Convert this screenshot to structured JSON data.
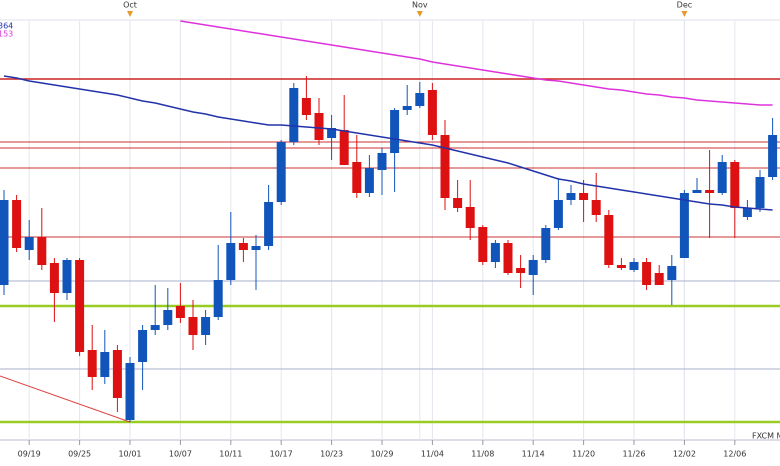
{
  "chart_data": {
    "type": "candlestick",
    "categories": [
      null,
      null,
      "09/19",
      null,
      null,
      null,
      "09/25",
      null,
      null,
      null,
      "10/01",
      null,
      null,
      null,
      "10/07",
      null,
      null,
      null,
      "10/11",
      null,
      null,
      null,
      "10/17",
      null,
      null,
      null,
      "10/23",
      null,
      null,
      null,
      "10/29",
      null,
      null,
      null,
      "11/04",
      null,
      null,
      null,
      "11/08",
      null,
      null,
      null,
      "11/14",
      null,
      null,
      null,
      "11/20",
      null,
      null,
      null,
      "11/26",
      null,
      null,
      null,
      "12/02",
      null,
      null,
      null,
      "12/06",
      null,
      null,
      null
    ],
    "month_categories": [
      null,
      null,
      null,
      null,
      null,
      null,
      null,
      null,
      null,
      null,
      "Oct",
      null,
      null,
      null,
      null,
      null,
      null,
      null,
      null,
      null,
      null,
      null,
      null,
      null,
      null,
      null,
      null,
      null,
      null,
      null,
      null,
      null,
      null,
      "Nov",
      null,
      null,
      null,
      null,
      null,
      null,
      null,
      null,
      null,
      null,
      null,
      null,
      null,
      null,
      null,
      null,
      null,
      null,
      null,
      null,
      "Dec",
      null,
      null,
      null,
      null,
      null,
      null,
      null
    ],
    "open": [
      155,
      240,
      190,
      203,
      177,
      147,
      180,
      90,
      63,
      90,
      20,
      78,
      110,
      115,
      134,
      123,
      105,
      123,
      160,
      197,
      190,
      194,
      238,
      298,
      342,
      327,
      302,
      310,
      278,
      247,
      270,
      287,
      330,
      334,
      350,
      305,
      242,
      233,
      213,
      178,
      197,
      172,
      165,
      180,
      212,
      240,
      247,
      240,
      225,
      175,
      170,
      178,
      167,
      160,
      182,
      247,
      250,
      247,
      278,
      223,
      232,
      263
    ],
    "high": [
      250,
      245,
      220,
      232,
      182,
      182,
      182,
      115,
      110,
      95,
      83,
      115,
      155,
      152,
      157,
      140,
      130,
      195,
      228,
      202,
      205,
      255,
      300,
      357,
      364,
      342,
      325,
      345,
      305,
      285,
      292,
      332,
      355,
      358,
      357,
      320,
      260,
      260,
      215,
      200,
      200,
      185,
      185,
      215,
      262,
      255,
      260,
      267,
      230,
      182,
      182,
      182,
      175,
      185,
      250,
      262,
      290,
      285,
      280,
      240,
      270,
      322
    ],
    "low": [
      145,
      188,
      180,
      170,
      118,
      140,
      84,
      50,
      56,
      28,
      18,
      50,
      105,
      110,
      117,
      90,
      95,
      120,
      155,
      178,
      150,
      190,
      235,
      295,
      320,
      295,
      280,
      275,
      242,
      243,
      245,
      248,
      325,
      332,
      300,
      230,
      228,
      200,
      175,
      172,
      165,
      152,
      145,
      177,
      210,
      235,
      218,
      218,
      172,
      170,
      168,
      150,
      155,
      135,
      182,
      247,
      202,
      245,
      202,
      220,
      228,
      260
    ],
    "close": [
      240,
      192,
      203,
      175,
      147,
      180,
      88,
      63,
      88,
      42,
      77,
      110,
      115,
      130,
      122,
      105,
      123,
      160,
      197,
      190,
      194,
      238,
      298,
      352,
      325,
      300,
      312,
      275,
      247,
      272,
      287,
      330,
      334,
      347,
      305,
      242,
      232,
      212,
      178,
      197,
      167,
      167,
      180,
      212,
      240,
      247,
      240,
      225,
      175,
      172,
      178,
      155,
      155,
      174,
      247,
      250,
      247,
      278,
      232,
      232,
      263,
      305
    ],
    "up_color": "#1155bb",
    "down_color": "#dd1111",
    "series": [
      {
        "name": "364",
        "color": "#2233aa",
        "values": [
          364,
          362,
          359,
          357,
          355,
          353,
          351,
          349,
          347,
          345,
          342,
          339,
          337,
          334,
          331,
          328,
          326,
          323,
          321,
          319,
          317,
          315,
          315,
          314,
          313,
          312,
          311,
          309,
          307,
          305,
          303,
          301,
          299,
          297,
          295,
          292,
          289,
          286,
          283,
          280,
          277,
          273,
          269,
          265,
          261,
          259,
          256,
          254,
          252,
          250,
          248,
          246,
          244,
          242,
          240,
          238,
          236,
          235,
          233,
          232,
          231,
          230
        ]
      },
      {
        "name": "153",
        "color": "#dd33dd",
        "values": [
          null,
          null,
          null,
          null,
          null,
          null,
          null,
          null,
          null,
          null,
          null,
          null,
          null,
          null,
          419,
          417,
          415,
          413,
          411,
          409,
          407,
          405,
          403,
          401,
          399,
          397,
          395,
          393,
          391,
          389,
          387,
          385,
          383,
          381,
          378,
          376,
          374,
          372,
          370,
          368,
          366,
          364,
          362,
          360,
          359,
          357,
          355,
          353,
          351,
          350,
          348,
          346,
          345,
          343,
          342,
          340,
          339,
          338,
          337,
          336,
          335,
          335
        ]
      }
    ],
    "hlines": [
      {
        "value": 361,
        "color": "#cc2222"
      },
      {
        "value": 298,
        "color": "#cc3333"
      },
      {
        "value": 292,
        "color": "#cc3333"
      },
      {
        "value": 272,
        "color": "#cc3333"
      },
      {
        "value": 203,
        "color": "#cc3333"
      },
      {
        "value": 159,
        "color": "#aab0cc"
      },
      {
        "value": 71,
        "color": "#aab0cc"
      },
      {
        "value": 134,
        "color": "#99cc22"
      },
      {
        "value": 18,
        "color": "#99cc22"
      }
    ],
    "trendline": {
      "start_index": 0,
      "start_value": 64,
      "end_index": 10,
      "end_value": 18,
      "color": "#dd4444"
    },
    "ylim": [
      0,
      440
    ],
    "source": "FXCM M"
  }
}
